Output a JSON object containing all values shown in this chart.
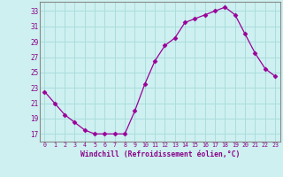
{
  "x": [
    0,
    1,
    2,
    3,
    4,
    5,
    6,
    7,
    8,
    9,
    10,
    11,
    12,
    13,
    14,
    15,
    16,
    17,
    18,
    19,
    20,
    21,
    22,
    23
  ],
  "y": [
    22.5,
    21.0,
    19.5,
    18.5,
    17.5,
    17.0,
    17.0,
    17.0,
    17.0,
    20.0,
    23.5,
    26.5,
    28.5,
    29.5,
    31.5,
    32.0,
    32.5,
    33.0,
    33.5,
    32.5,
    30.0,
    27.5,
    25.5,
    24.5
  ],
  "line_color": "#990099",
  "marker": "D",
  "markersize": 2.5,
  "bg_color": "#cef0f0",
  "grid_color": "#aadddd",
  "xlabel": "Windchill (Refroidissement éolien,°C)",
  "xlim": [
    -0.5,
    23.5
  ],
  "ylim": [
    16.0,
    34.2
  ],
  "yticks": [
    17,
    19,
    21,
    23,
    25,
    27,
    29,
    31,
    33
  ],
  "xticks": [
    0,
    1,
    2,
    3,
    4,
    5,
    6,
    7,
    8,
    9,
    10,
    11,
    12,
    13,
    14,
    15,
    16,
    17,
    18,
    19,
    20,
    21,
    22,
    23
  ],
  "tick_color": "#880088",
  "label_color": "#880088",
  "spine_color": "#888888",
  "ytick_fontsize": 5.5,
  "xtick_fontsize": 4.8,
  "xlabel_fontsize": 5.8
}
